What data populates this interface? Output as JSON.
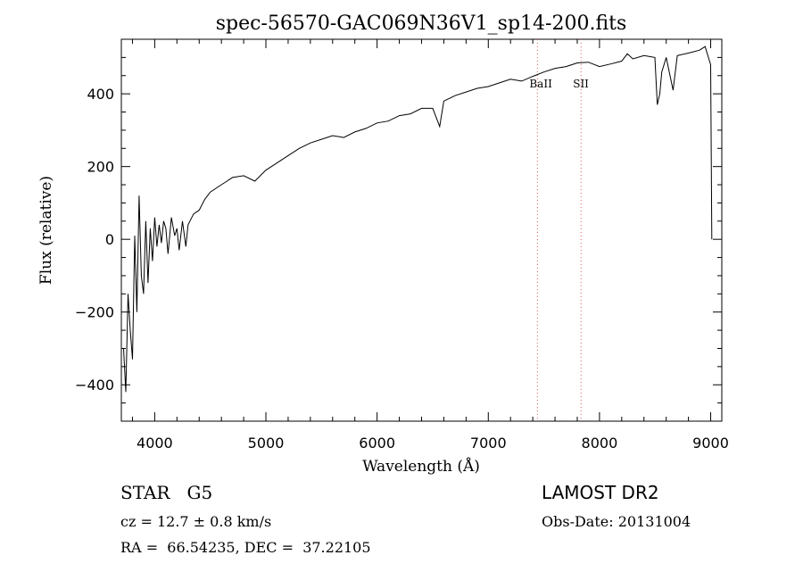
{
  "chart_data": {
    "type": "line",
    "title": "spec-56570-GAC069N36V1_sp14-200.fits",
    "xlabel": "Wavelength (Å)",
    "ylabel": "Flux (relative)",
    "xlim": [
      3700,
      9100
    ],
    "ylim": [
      -500,
      550
    ],
    "x_ticks": [
      4000,
      5000,
      6000,
      7000,
      8000,
      9000
    ],
    "y_ticks": [
      -400,
      -200,
      0,
      200,
      400
    ],
    "x_tick_labels": [
      "4000",
      "5000",
      "6000",
      "7000",
      "8000",
      "9000"
    ],
    "y_tick_labels": [
      "−400",
      "−200",
      "0",
      "200",
      "400"
    ],
    "grid": false,
    "line_color": "#000000",
    "marker_line_color": "#e05a5a",
    "spectrum": {
      "x": [
        3720,
        3740,
        3760,
        3780,
        3800,
        3820,
        3840,
        3860,
        3880,
        3900,
        3920,
        3940,
        3960,
        3980,
        4000,
        4020,
        4040,
        4060,
        4080,
        4100,
        4120,
        4150,
        4180,
        4200,
        4220,
        4250,
        4280,
        4300,
        4350,
        4400,
        4450,
        4500,
        4600,
        4700,
        4800,
        4900,
        5000,
        5100,
        5200,
        5300,
        5400,
        5500,
        5600,
        5700,
        5800,
        5900,
        6000,
        6100,
        6200,
        6300,
        6400,
        6500,
        6563,
        6600,
        6700,
        6800,
        6900,
        7000,
        7100,
        7200,
        7300,
        7400,
        7500,
        7600,
        7700,
        7800,
        7900,
        8000,
        8100,
        8200,
        8250,
        8300,
        8400,
        8498,
        8520,
        8542,
        8560,
        8600,
        8662,
        8700,
        8800,
        8900,
        8950,
        8980,
        9000,
        9010
      ],
      "y": [
        -300,
        -420,
        -150,
        -250,
        -330,
        10,
        -200,
        120,
        -100,
        -150,
        50,
        -120,
        30,
        -60,
        60,
        -20,
        40,
        -10,
        50,
        30,
        -40,
        60,
        10,
        30,
        -30,
        50,
        -20,
        40,
        70,
        80,
        110,
        130,
        150,
        170,
        175,
        160,
        190,
        210,
        230,
        250,
        265,
        275,
        285,
        280,
        295,
        305,
        320,
        325,
        340,
        345,
        360,
        360,
        310,
        380,
        395,
        405,
        415,
        420,
        430,
        440,
        435,
        448,
        460,
        470,
        475,
        485,
        487,
        475,
        482,
        490,
        510,
        496,
        505,
        500,
        370,
        400,
        460,
        500,
        410,
        505,
        512,
        520,
        530,
        500,
        480,
        0
      ]
    },
    "lines": [
      {
        "name": "Ba II",
        "label": "BaII",
        "x": 7442
      },
      {
        "name": "S II",
        "label": "SII",
        "x": 7834
      }
    ]
  },
  "info": {
    "object_class": "STAR",
    "subclass": "G5",
    "survey": "LAMOST DR2",
    "cz": "cz = 12.7 ± 0.8 km/s",
    "obs_date": "Obs-Date: 20131004",
    "ra_dec": "RA =  66.54235, DEC =  37.22105"
  }
}
